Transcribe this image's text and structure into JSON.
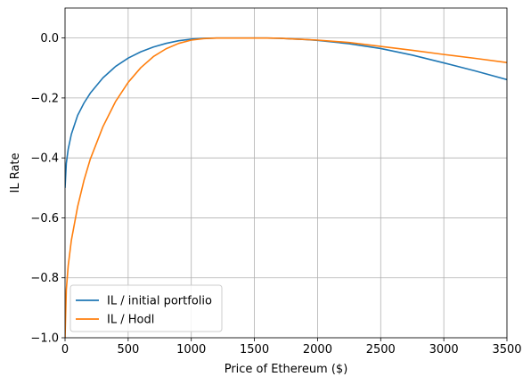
{
  "chart_data": {
    "type": "line",
    "title": "",
    "xlabel": "Price of Ethereum ($)",
    "ylabel": "IL Rate",
    "xlim": [
      0,
      3500
    ],
    "ylim": [
      -1.0,
      0.1
    ],
    "x_ticks": [
      0,
      500,
      1000,
      1500,
      2000,
      2500,
      3000,
      3500
    ],
    "x_tick_labels": [
      "0",
      "500",
      "1000",
      "1500",
      "2000",
      "2500",
      "3000",
      "3500"
    ],
    "y_ticks": [
      -1.0,
      -0.8,
      -0.6,
      -0.4,
      -0.2,
      0.0
    ],
    "y_tick_labels": [
      "−1.0",
      "−0.8",
      "−0.6",
      "−0.4",
      "−0.2",
      "0.0"
    ],
    "grid": true,
    "legend_position": "lower-left",
    "series": [
      {
        "name": "IL / initial portfolio",
        "color": "#1f77b4",
        "x": [
          0,
          10,
          25,
          50,
          100,
          150,
          200,
          300,
          400,
          500,
          600,
          700,
          800,
          900,
          1000,
          1100,
          1200,
          1300,
          1400,
          1500,
          1600,
          1700,
          1800,
          1900,
          2000,
          2250,
          2500,
          2750,
          3000,
          3250,
          3500
        ],
        "y": [
          -0.5,
          -0.418,
          -0.371,
          -0.321,
          -0.258,
          -0.217,
          -0.184,
          -0.133,
          -0.095,
          -0.067,
          -0.046,
          -0.03,
          -0.018,
          -0.009,
          -0.004,
          -0.001,
          0.0,
          0.0,
          0.0,
          0.0,
          0.0,
          -0.001,
          -0.003,
          -0.005,
          -0.008,
          -0.019,
          -0.035,
          -0.057,
          -0.083,
          -0.11,
          -0.139
        ]
      },
      {
        "name": "IL / Hodl",
        "color": "#ff7f0e",
        "x": [
          0,
          10,
          25,
          50,
          100,
          150,
          200,
          300,
          400,
          500,
          600,
          700,
          800,
          900,
          1000,
          1100,
          1200,
          1300,
          1400,
          1500,
          1600,
          1700,
          1800,
          1900,
          2000,
          2250,
          2500,
          2750,
          3000,
          3250,
          3500
        ],
        "y": [
          -1.0,
          -0.84,
          -0.76,
          -0.675,
          -0.562,
          -0.475,
          -0.404,
          -0.296,
          -0.212,
          -0.148,
          -0.099,
          -0.062,
          -0.036,
          -0.018,
          -0.007,
          -0.002,
          0.0,
          0.0,
          0.0,
          0.0,
          0.0,
          -0.001,
          -0.003,
          -0.005,
          -0.007,
          -0.015,
          -0.028,
          -0.041,
          -0.055,
          -0.068,
          -0.082
        ]
      }
    ]
  }
}
